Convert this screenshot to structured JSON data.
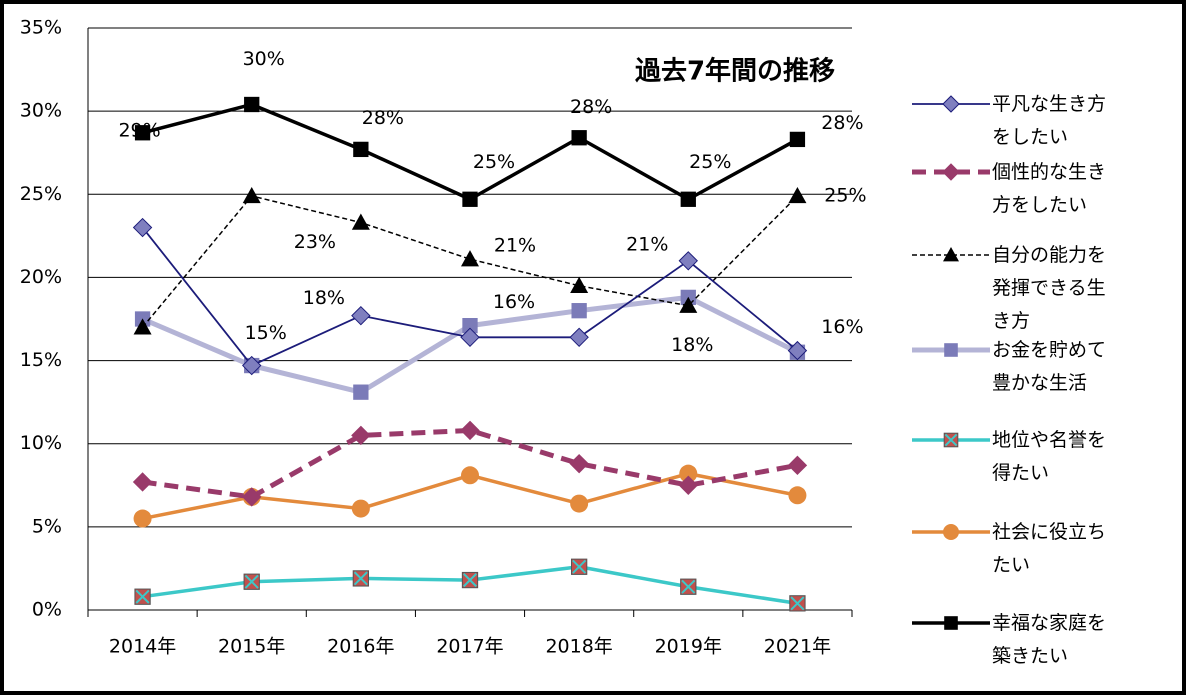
{
  "chart_data": {
    "type": "line",
    "title": "過去7年間の推移",
    "categories": [
      "2014年",
      "2015年",
      "2016年",
      "2017年",
      "2018年",
      "2019年",
      "2021年"
    ],
    "ylim": [
      0,
      35
    ],
    "yticks": [
      {
        "value": 0,
        "label": "0%"
      },
      {
        "value": 5,
        "label": "5%"
      },
      {
        "value": 10,
        "label": "10%"
      },
      {
        "value": 15,
        "label": "15%"
      },
      {
        "value": 20,
        "label": "20%"
      },
      {
        "value": 25,
        "label": "25%"
      },
      {
        "value": 30,
        "label": "30%"
      },
      {
        "value": 35,
        "label": "35%"
      }
    ],
    "grid": true,
    "legend": "right",
    "series": [
      {
        "name": "平凡な生き方をしたい",
        "color": "#1c1c7a",
        "marker_color": "#7f7fbf",
        "marker": "diamond",
        "line_style": "solid",
        "values": [
          23.0,
          14.7,
          17.7,
          16.4,
          16.4,
          21.0,
          15.6
        ],
        "value_labels": [
          null,
          "15%",
          "18%",
          "16%",
          null,
          "21%",
          "16%"
        ]
      },
      {
        "name": "個性的な生き方をしたい",
        "color": "#993a6a",
        "marker_color": "#993a6a",
        "marker": "diamond",
        "line_style": "dashed",
        "values": [
          7.7,
          6.8,
          10.5,
          10.8,
          8.8,
          7.5,
          8.7
        ]
      },
      {
        "name": "自分の能力を発揮できる生き方",
        "color": "#000000",
        "marker_color": "#000000",
        "marker": "triangle",
        "line_style": "dotted",
        "values": [
          17.0,
          24.9,
          23.3,
          21.1,
          19.5,
          18.3,
          24.9
        ],
        "value_labels": [
          null,
          null,
          "23%",
          "21%",
          null,
          "18%",
          "25%"
        ]
      },
      {
        "name": "お金を貯めて豊かな生活",
        "color": "#b4b4d6",
        "marker_color": "#7b7bb8",
        "marker": "square",
        "line_style": "solid",
        "values": [
          17.5,
          14.7,
          13.1,
          17.1,
          18.0,
          18.8,
          15.5
        ]
      },
      {
        "name": "地位や名誉を得たい",
        "color": "#3cc8c8",
        "marker_color": "#c0504d",
        "marker": "xsquare",
        "line_style": "solid",
        "values": [
          0.8,
          1.7,
          1.9,
          1.8,
          2.6,
          1.4,
          0.4
        ]
      },
      {
        "name": "社会に役立ちたい",
        "color": "#e38a3c",
        "marker_color": "#e38a3c",
        "marker": "circle",
        "line_style": "solid",
        "values": [
          5.5,
          6.8,
          6.1,
          8.1,
          6.4,
          8.2,
          6.9
        ]
      },
      {
        "name": "幸福な家庭を築きたい",
        "color": "#000000",
        "marker_color": "#000000",
        "marker": "square",
        "line_style": "solid",
        "values": [
          28.7,
          30.4,
          27.7,
          24.7,
          28.4,
          24.7,
          28.3
        ],
        "value_labels": [
          "29%",
          "30%",
          "28%",
          "25%",
          "28%",
          "25%",
          "28%"
        ]
      }
    ]
  }
}
